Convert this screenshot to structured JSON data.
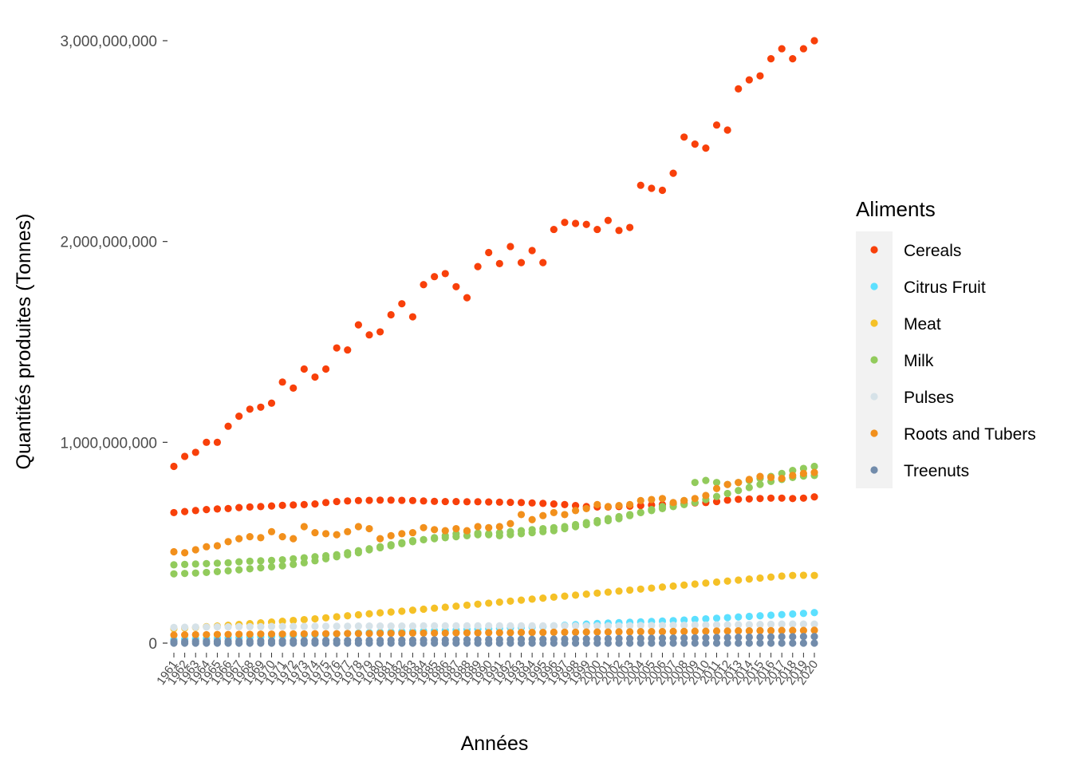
{
  "chart_data": {
    "type": "scatter",
    "title": "",
    "xlabel": "Années",
    "ylabel": "Quantités produites (Tonnes)",
    "ylim": [
      -50000000,
      3000000000
    ],
    "yticks": [
      0,
      1000000000,
      2000000000,
      3000000000
    ],
    "ytick_labels": [
      "0",
      "1,000,000,000",
      "2,000,000,000",
      "3,000,000,000"
    ],
    "x": [
      1961,
      1962,
      1963,
      1964,
      1965,
      1966,
      1967,
      1968,
      1969,
      1970,
      1971,
      1972,
      1973,
      1974,
      1975,
      1976,
      1977,
      1978,
      1979,
      1980,
      1981,
      1982,
      1983,
      1984,
      1985,
      1986,
      1987,
      1988,
      1989,
      1990,
      1991,
      1992,
      1993,
      1994,
      1995,
      1996,
      1997,
      1998,
      1999,
      2000,
      2001,
      2002,
      2003,
      2004,
      2005,
      2006,
      2007,
      2008,
      2009,
      2010,
      2011,
      2012,
      2013,
      2014,
      2015,
      2016,
      2017,
      2018,
      2019,
      2020
    ],
    "legend_title": "Aliments",
    "legend_position": "right",
    "grid": false,
    "series": [
      {
        "name": "Cereals",
        "color": "#F8400A",
        "values": [
          880000000,
          930000000,
          950000000,
          1000000000,
          1000000000,
          1080000000,
          1130000000,
          1165000000,
          1175000000,
          1195000000,
          1300000000,
          1270000000,
          1365000000,
          1325000000,
          1365000000,
          1470000000,
          1460000000,
          1585000000,
          1535000000,
          1550000000,
          1635000000,
          1690000000,
          1625000000,
          1785000000,
          1825000000,
          1840000000,
          1775000000,
          1720000000,
          1875000000,
          1945000000,
          1890000000,
          1975000000,
          1895000000,
          1955000000,
          1895000000,
          2060000000,
          2095000000,
          2090000000,
          2085000000,
          2060000000,
          2105000000,
          2055000000,
          2070000000,
          2280000000,
          2265000000,
          2255000000,
          2340000000,
          2520000000,
          2485000000,
          2465000000,
          2580000000,
          2555000000,
          2760000000,
          2805000000,
          2825000000,
          2910000000,
          2960000000,
          2910000000,
          2960000000,
          3000000000
        ]
      },
      {
        "name": "Cereals",
        "color": "#F8400A",
        "values": [
          650000000,
          655000000,
          660000000,
          665000000,
          668000000,
          670000000,
          675000000,
          678000000,
          680000000,
          683000000,
          686000000,
          688000000,
          690000000,
          693000000,
          700000000,
          705000000,
          708000000,
          710000000,
          711000000,
          712000000,
          712000000,
          711000000,
          710000000,
          708000000,
          706000000,
          705000000,
          705000000,
          704000000,
          704000000,
          703000000,
          702000000,
          701000000,
          700000000,
          698000000,
          696000000,
          693000000,
          690000000,
          685000000,
          680000000,
          678000000,
          678000000,
          680000000,
          682000000,
          685000000,
          688000000,
          690000000,
          692000000,
          695000000,
          698000000,
          700000000,
          705000000,
          712000000,
          716000000,
          718000000,
          720000000,
          722000000,
          722000000,
          720000000,
          722000000,
          728000000
        ]
      },
      {
        "name": "Citrus Fruit",
        "color": "#5CE0FF",
        "values": [
          18000000,
          19500000,
          21000000,
          22500000,
          24000000,
          26000000,
          28000000,
          30000000,
          32000000,
          34000000,
          36000000,
          38000000,
          40000000,
          42000000,
          44000000,
          46000000,
          48000000,
          50000000,
          52000000,
          54000000,
          55000000,
          57000000,
          58000000,
          60000000,
          62000000,
          64000000,
          66000000,
          68000000,
          70000000,
          72000000,
          74000000,
          76000000,
          78000000,
          80000000,
          83000000,
          86000000,
          89000000,
          92000000,
          95000000,
          98000000,
          100000000,
          102000000,
          104000000,
          106000000,
          108000000,
          110000000,
          112000000,
          115000000,
          118000000,
          121000000,
          124000000,
          127000000,
          130000000,
          133000000,
          136000000,
          139000000,
          142000000,
          145000000,
          148000000,
          152000000
        ]
      },
      {
        "name": "Meat",
        "color": "#F5C127",
        "values": [
          72000000,
          75000000,
          78000000,
          82000000,
          85000000,
          89000000,
          93000000,
          97000000,
          101000000,
          105000000,
          109000000,
          113000000,
          117000000,
          121000000,
          126000000,
          131000000,
          136000000,
          141000000,
          146000000,
          151000000,
          155000000,
          159000000,
          164000000,
          169000000,
          174000000,
          179000000,
          184000000,
          189000000,
          194000000,
          199000000,
          204000000,
          209000000,
          214000000,
          219000000,
          224000000,
          229000000,
          234000000,
          239000000,
          244000000,
          249000000,
          254000000,
          259000000,
          264000000,
          269000000,
          274000000,
          279000000,
          284000000,
          289000000,
          294000000,
          299000000,
          304000000,
          309000000,
          314000000,
          319000000,
          324000000,
          329000000,
          334000000,
          337000000,
          338000000,
          337000000
        ]
      },
      {
        "name": "Milk",
        "color": "#92CB5C",
        "values": [
          390000000,
          392000000,
          394000000,
          396000000,
          398000000,
          400000000,
          405000000,
          408000000,
          410000000,
          412000000,
          415000000,
          420000000,
          425000000,
          430000000,
          435000000,
          440000000,
          450000000,
          460000000,
          470000000,
          480000000,
          490000000,
          500000000,
          510000000,
          515000000,
          520000000,
          525000000,
          530000000,
          535000000,
          540000000,
          545000000,
          550000000,
          555000000,
          560000000,
          565000000,
          570000000,
          575000000,
          580000000,
          590000000,
          600000000,
          610000000,
          620000000,
          630000000,
          640000000,
          650000000,
          660000000,
          670000000,
          680000000,
          690000000,
          700000000,
          715000000,
          730000000,
          745000000,
          760000000,
          775000000,
          790000000,
          805000000,
          815000000,
          825000000,
          832000000,
          835000000
        ]
      },
      {
        "name": "Milk",
        "color": "#92CB5C",
        "values": [
          345000000,
          347000000,
          349000000,
          352000000,
          356000000,
          360000000,
          365000000,
          370000000,
          375000000,
          380000000,
          385000000,
          392000000,
          400000000,
          410000000,
          420000000,
          430000000,
          440000000,
          450000000,
          465000000,
          475000000,
          485000000,
          495000000,
          505000000,
          515000000,
          525000000,
          535000000,
          545000000,
          555000000,
          548000000,
          540000000,
          535000000,
          540000000,
          545000000,
          550000000,
          555000000,
          560000000,
          570000000,
          580000000,
          590000000,
          600000000,
          610000000,
          620000000,
          635000000,
          650000000,
          665000000,
          680000000,
          695000000,
          710000000,
          800000000,
          810000000,
          800000000,
          790000000,
          800000000,
          810000000,
          820000000,
          830000000,
          845000000,
          860000000,
          870000000,
          880000000
        ]
      },
      {
        "name": "Pulses",
        "color": "#D6E2E8",
        "values": [
          78000000,
          79000000,
          80000000,
          80000000,
          81000000,
          81000000,
          82000000,
          82000000,
          82000000,
          83000000,
          83000000,
          83000000,
          83000000,
          84000000,
          84000000,
          84000000,
          84000000,
          85000000,
          85000000,
          85000000,
          85000000,
          85000000,
          85000000,
          86000000,
          86000000,
          86000000,
          86000000,
          86000000,
          86000000,
          86000000,
          86000000,
          86000000,
          86000000,
          86000000,
          86000000,
          86000000,
          86000000,
          86000000,
          86000000,
          86000000,
          86000000,
          86000000,
          87000000,
          88000000,
          88000000,
          88000000,
          89000000,
          89000000,
          90000000,
          90000000,
          91000000,
          91000000,
          92000000,
          92000000,
          93000000,
          94000000,
          95000000,
          95000000,
          95000000,
          95000000
        ]
      },
      {
        "name": "Roots and Tubers",
        "color": "#F2901C",
        "values": [
          455000000,
          450000000,
          465000000,
          480000000,
          485000000,
          505000000,
          520000000,
          530000000,
          525000000,
          555000000,
          530000000,
          520000000,
          580000000,
          550000000,
          545000000,
          540000000,
          555000000,
          580000000,
          570000000,
          520000000,
          535000000,
          545000000,
          550000000,
          575000000,
          565000000,
          560000000,
          570000000,
          560000000,
          580000000,
          575000000,
          580000000,
          595000000,
          640000000,
          615000000,
          635000000,
          650000000,
          640000000,
          660000000,
          670000000,
          690000000,
          680000000,
          685000000,
          690000000,
          710000000,
          715000000,
          720000000,
          700000000,
          710000000,
          720000000,
          735000000,
          770000000,
          790000000,
          800000000,
          815000000,
          830000000,
          825000000,
          820000000,
          835000000,
          845000000,
          850000000
        ]
      },
      {
        "name": "Roots and Tubers",
        "color": "#F2901C",
        "values": [
          40000000,
          41000000,
          42000000,
          42000000,
          43000000,
          43000000,
          44000000,
          44000000,
          45000000,
          45000000,
          45000000,
          46000000,
          46000000,
          47000000,
          47000000,
          47000000,
          48000000,
          48000000,
          48000000,
          49000000,
          49000000,
          49000000,
          50000000,
          50000000,
          50000000,
          50000000,
          51000000,
          51000000,
          51000000,
          52000000,
          52000000,
          52000000,
          53000000,
          53000000,
          53000000,
          54000000,
          54000000,
          54000000,
          55000000,
          55000000,
          55000000,
          56000000,
          56000000,
          57000000,
          57000000,
          57000000,
          58000000,
          58000000,
          59000000,
          59000000,
          60000000,
          60000000,
          61000000,
          61000000,
          62000000,
          62000000,
          63000000,
          63000000,
          63000000,
          64000000
        ]
      },
      {
        "name": "Treenuts",
        "color": "#728CAB",
        "values": [
          0,
          0,
          0,
          0,
          0,
          0,
          0,
          0,
          0,
          0,
          0,
          0,
          0,
          0,
          0,
          0,
          0,
          0,
          0,
          0,
          0,
          0,
          0,
          0,
          0,
          0,
          0,
          0,
          0,
          0,
          0,
          0,
          0,
          0,
          0,
          0,
          0,
          0,
          0,
          0,
          0,
          0,
          0,
          0,
          0,
          0,
          0,
          0,
          0,
          0,
          0,
          0,
          0,
          0,
          0,
          0,
          0,
          0,
          0,
          0
        ]
      },
      {
        "name": "Treenuts",
        "color": "#728CAB",
        "values": [
          8000000,
          8000000,
          9000000,
          9000000,
          9000000,
          10000000,
          10000000,
          10000000,
          11000000,
          11000000,
          11000000,
          12000000,
          12000000,
          12000000,
          13000000,
          13000000,
          13000000,
          14000000,
          14000000,
          14000000,
          15000000,
          15000000,
          15000000,
          16000000,
          16000000,
          16000000,
          17000000,
          17000000,
          17000000,
          18000000,
          18000000,
          18000000,
          19000000,
          19000000,
          19000000,
          20000000,
          20000000,
          21000000,
          21000000,
          22000000,
          22000000,
          23000000,
          23000000,
          24000000,
          24000000,
          25000000,
          25000000,
          26000000,
          26000000,
          27000000,
          28000000,
          28000000,
          29000000,
          30000000,
          30000000,
          31000000,
          32000000,
          32000000,
          33000000,
          33000000
        ]
      }
    ],
    "legend": [
      {
        "label": "Cereals",
        "color": "#F8400A"
      },
      {
        "label": "Citrus Fruit",
        "color": "#5CE0FF"
      },
      {
        "label": "Meat",
        "color": "#F5C127"
      },
      {
        "label": "Milk",
        "color": "#92CB5C"
      },
      {
        "label": "Pulses",
        "color": "#D6E2E8"
      },
      {
        "label": "Roots and Tubers",
        "color": "#F2901C"
      },
      {
        "label": "Treenuts",
        "color": "#728CAB"
      }
    ]
  }
}
